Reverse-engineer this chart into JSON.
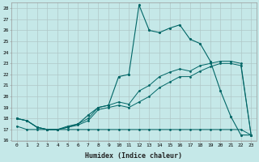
{
  "title": "",
  "xlabel": "Humidex (Indice chaleur)",
  "background_color": "#c5e8e8",
  "grid_color": "#b0c8c8",
  "line_color": "#006666",
  "xlim": [
    -0.5,
    23.5
  ],
  "ylim": [
    16,
    28.5
  ],
  "yticks": [
    16,
    17,
    18,
    19,
    20,
    21,
    22,
    23,
    24,
    25,
    26,
    27,
    28
  ],
  "xticks": [
    0,
    1,
    2,
    3,
    4,
    5,
    6,
    7,
    8,
    9,
    10,
    11,
    12,
    13,
    14,
    15,
    16,
    17,
    18,
    19,
    20,
    21,
    22,
    23
  ],
  "series1_x": [
    0,
    1,
    2,
    3,
    4,
    5,
    6,
    7,
    8,
    9,
    10,
    11,
    12,
    13,
    14,
    15,
    16,
    17,
    18,
    19,
    20,
    21,
    22,
    23
  ],
  "series1_y": [
    18.0,
    17.8,
    17.2,
    17.0,
    17.0,
    17.3,
    17.5,
    18.3,
    19.0,
    19.2,
    21.8,
    22.0,
    28.3,
    26.0,
    25.8,
    26.2,
    26.5,
    25.2,
    24.8,
    23.2,
    20.5,
    18.2,
    16.5,
    16.5
  ],
  "series2_x": [
    0,
    1,
    2,
    3,
    4,
    5,
    6,
    7,
    8,
    9,
    10,
    11,
    12,
    13,
    14,
    15,
    16,
    17,
    18,
    19,
    20,
    21,
    22,
    23
  ],
  "series2_y": [
    18.0,
    17.8,
    17.2,
    17.0,
    17.0,
    17.2,
    17.5,
    18.0,
    19.0,
    19.2,
    19.5,
    19.3,
    20.5,
    21.0,
    21.8,
    22.2,
    22.5,
    22.3,
    22.8,
    23.0,
    23.2,
    23.2,
    23.0,
    16.5
  ],
  "series3_x": [
    0,
    1,
    2,
    3,
    4,
    5,
    6,
    7,
    8,
    9,
    10,
    11,
    12,
    13,
    14,
    15,
    16,
    17,
    18,
    19,
    20,
    21,
    22,
    23
  ],
  "series3_y": [
    18.0,
    17.8,
    17.2,
    17.0,
    17.0,
    17.2,
    17.4,
    17.8,
    18.8,
    19.0,
    19.2,
    19.0,
    19.5,
    20.0,
    20.8,
    21.3,
    21.8,
    21.8,
    22.3,
    22.7,
    23.0,
    23.0,
    22.8,
    16.5
  ],
  "series4_x": [
    0,
    1,
    2,
    3,
    4,
    5,
    6,
    7,
    8,
    9,
    10,
    11,
    12,
    13,
    14,
    15,
    16,
    17,
    18,
    19,
    20,
    21,
    22,
    23
  ],
  "series4_y": [
    17.3,
    17.0,
    17.0,
    17.0,
    17.0,
    17.0,
    17.0,
    17.0,
    17.0,
    17.0,
    17.0,
    17.0,
    17.0,
    17.0,
    17.0,
    17.0,
    17.0,
    17.0,
    17.0,
    17.0,
    17.0,
    17.0,
    17.0,
    16.5
  ]
}
